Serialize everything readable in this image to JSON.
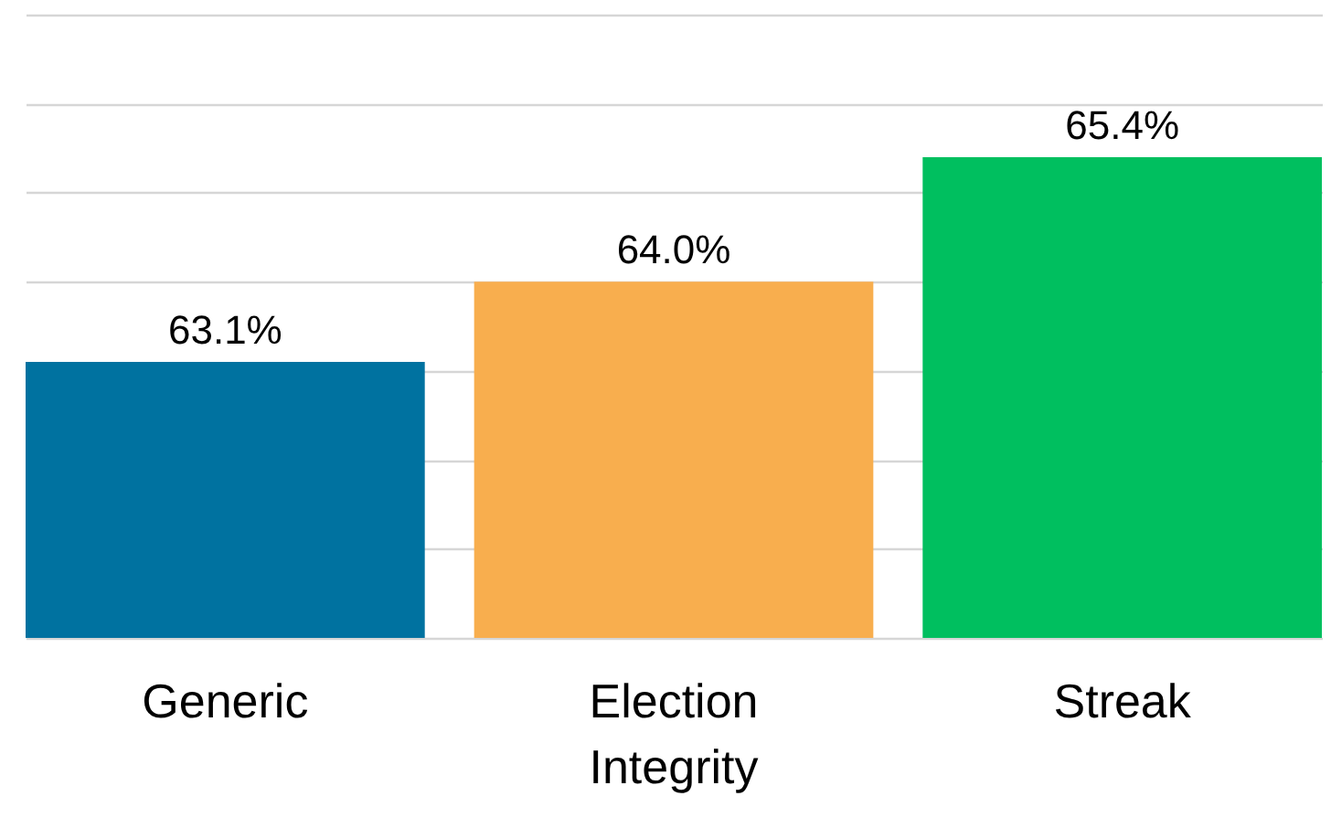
{
  "chart_data": {
    "type": "bar",
    "categories": [
      "Generic",
      "Election Integrity",
      "Streak"
    ],
    "values": [
      63.1,
      64.0,
      65.4
    ],
    "colors": [
      "#0072a0",
      "#f8ae4e",
      "#00bf5f"
    ],
    "value_labels": [
      "63.1%",
      "64.0%",
      "65.4%"
    ],
    "ylim": [
      60,
      67
    ],
    "yticks": [
      60,
      61,
      62,
      63,
      64,
      65,
      66,
      67
    ],
    "grid": "y",
    "tick_labels": "x"
  }
}
